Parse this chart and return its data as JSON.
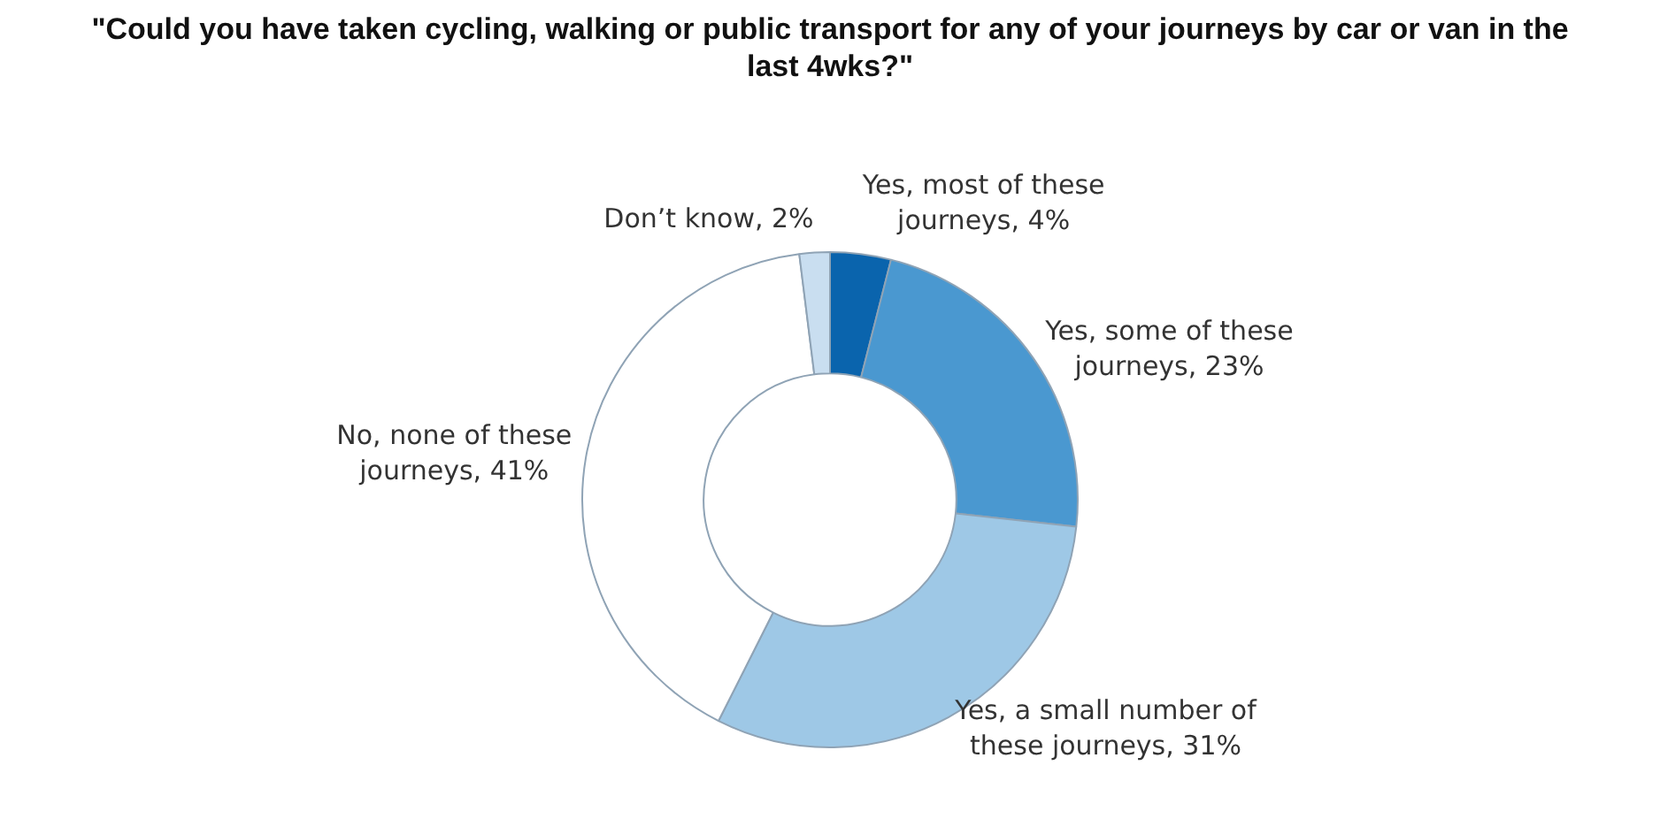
{
  "chart_data": {
    "type": "donut",
    "title": "\"Could you have taken cycling, walking or public transport for any of your journeys by car or van in the last 4wks?\"",
    "categories": [
      "Yes, most of these journeys",
      "Yes, some of these journeys",
      "Yes, a small number of these journeys",
      "No, none of these journeys",
      "Don’t know"
    ],
    "values": [
      4,
      23,
      31,
      41,
      2
    ],
    "colors": [
      "#0a64ad",
      "#4a98d0",
      "#9ec8e6",
      "#ffffff",
      "#c9def0"
    ],
    "value_labels": [
      ", 4%",
      ", 23%",
      ", 31%",
      ", 41%",
      ", 2%"
    ],
    "legend": false
  }
}
